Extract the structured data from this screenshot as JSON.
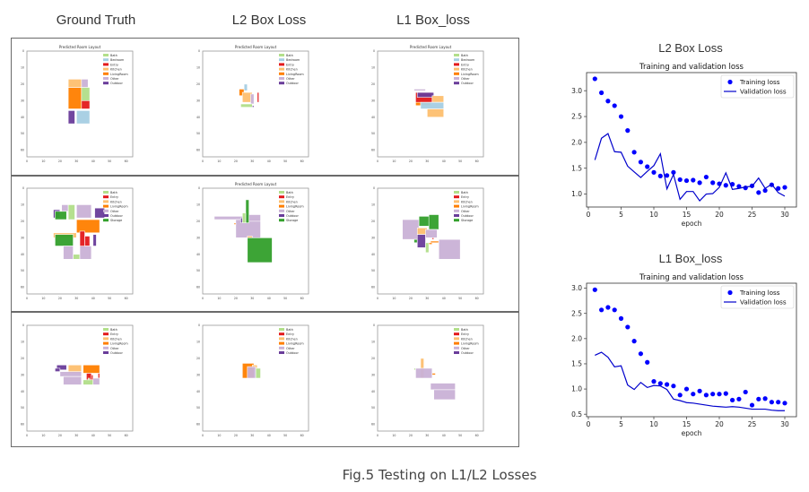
{
  "headers": {
    "col1": "Ground Truth",
    "col2": "L2 Box Loss",
    "col3": "L1 Box_loss"
  },
  "caption": "Fig.5 Testing on L1/L2 Losses",
  "room_colors": {
    "Bath": "#b2df8a",
    "Bedroom": "#a6cee3",
    "Entry": "#e31a1c",
    "Kitchen": "#fdbf6f",
    "LivingRoom": "#ff7f00",
    "Other": "#cab2d6",
    "Outdoor": "#6a3d9a",
    "Storage": "#33a02c"
  },
  "layouts": [
    {
      "id": "r1c1",
      "title": "Predicted Room Layout",
      "legend": [
        "Bath",
        "Bedroom",
        "Entry",
        "Kitchen",
        "LivingRoom",
        "Other",
        "Outdoor"
      ],
      "rooms": [
        [
          "Kitchen",
          25,
          17,
          33,
          22
        ],
        [
          "Other",
          33,
          17,
          37,
          22
        ],
        [
          "LivingRoom",
          25,
          22,
          33,
          35
        ],
        [
          "Bath",
          33,
          22,
          38,
          31
        ],
        [
          "Entry",
          33,
          30,
          38,
          35
        ],
        [
          "Outdoor",
          25,
          36,
          29,
          44
        ],
        [
          "Bedroom",
          30,
          36,
          38,
          44
        ]
      ]
    },
    {
      "id": "r1c2",
      "title": "Predicted Room Layout",
      "legend": [
        "Bath",
        "Bedroom",
        "Entry",
        "Kitchen",
        "LivingRoom",
        "Other",
        "Outdoor"
      ],
      "rooms": [
        [
          "Bedroom",
          25,
          20,
          27,
          24
        ],
        [
          "LivingRoom",
          22,
          23,
          25,
          27
        ],
        [
          "Kitchen",
          24,
          25,
          30,
          31
        ],
        [
          "Other",
          29,
          26,
          31,
          32
        ],
        [
          "Entry",
          33,
          25,
          34,
          31
        ],
        [
          "Bath",
          23,
          32,
          30,
          34
        ],
        [
          "Outdoor",
          30,
          33,
          31,
          34
        ]
      ]
    },
    {
      "id": "r1c3",
      "title": "Predicted Room Layout",
      "legend": [
        "Bath",
        "Bedroom",
        "Entry",
        "Kitchen",
        "LivingRoom",
        "Other",
        "Outdoor"
      ],
      "rooms": [
        [
          "Other",
          22,
          23,
          29,
          24
        ],
        [
          "LivingRoom",
          23,
          30,
          32,
          33
        ],
        [
          "Entry",
          23,
          25,
          33,
          31
        ],
        [
          "Outdoor",
          24,
          25,
          34,
          28
        ],
        [
          "Kitchen",
          33,
          27,
          40,
          31
        ],
        [
          "Bedroom",
          26,
          31,
          40,
          35
        ],
        [
          "Kitchen",
          30,
          35,
          40,
          40
        ]
      ]
    },
    {
      "id": "r2c1",
      "title": "",
      "legend": [
        "Bath",
        "Entry",
        "Kitchen",
        "LivingRoom",
        "Other",
        "Outdoor",
        "Storage"
      ],
      "rooms": [
        [
          "Other",
          21,
          10,
          25,
          14
        ],
        [
          "Bath",
          25,
          10,
          29,
          19
        ],
        [
          "Other",
          30,
          10,
          39,
          18
        ],
        [
          "Outdoor",
          16,
          13,
          20,
          18
        ],
        [
          "Storage",
          17,
          14,
          24,
          19
        ],
        [
          "Outdoor",
          41,
          12,
          47,
          18
        ],
        [
          "Kitchen",
          16,
          27,
          30,
          30
        ],
        [
          "LivingRoom",
          30,
          19,
          44,
          27
        ],
        [
          "Entry",
          32,
          26,
          35,
          36
        ],
        [
          "Entry",
          35,
          29,
          38,
          35
        ],
        [
          "Outdoor",
          40,
          28,
          42,
          35
        ],
        [
          "Storage",
          17,
          28,
          28,
          35
        ],
        [
          "Other",
          22,
          35,
          28,
          43
        ],
        [
          "Bath",
          28,
          40,
          32,
          43
        ],
        [
          "Other",
          32,
          35,
          39,
          43
        ]
      ]
    },
    {
      "id": "r2c2",
      "title": "Predicted Room Layout",
      "legend": [
        "Bath",
        "Entry",
        "Kitchen",
        "LivingRoom",
        "Other",
        "Outdoor",
        "Storage"
      ],
      "rooms": [
        [
          "Other",
          7,
          17,
          26,
          19
        ],
        [
          "Other",
          20,
          19,
          35,
          30
        ],
        [
          "Other",
          26,
          16,
          35,
          20
        ],
        [
          "Storage",
          26,
          7,
          28,
          21
        ],
        [
          "Bath",
          24,
          15,
          26,
          21
        ],
        [
          "Outdoor",
          23,
          18,
          24,
          21
        ],
        [
          "LivingRoom",
          19,
          21,
          20,
          22
        ],
        [
          "Kitchen",
          27,
          29,
          30,
          30
        ],
        [
          "Storage",
          27,
          30,
          42,
          45
        ]
      ]
    },
    {
      "id": "r2c3",
      "title": "",
      "legend": [
        "Bath",
        "Entry",
        "Kitchen",
        "LivingRoom",
        "Other",
        "Outdoor",
        "Storage"
      ],
      "rooms": [
        [
          "Other",
          15,
          19,
          25,
          31
        ],
        [
          "Storage",
          25,
          17,
          32,
          23
        ],
        [
          "Storage",
          31,
          16,
          37,
          25
        ],
        [
          "Kitchen",
          24,
          24,
          30,
          28
        ],
        [
          "Storage",
          22,
          31,
          24,
          33
        ],
        [
          "Outdoor",
          24,
          28,
          29,
          36
        ],
        [
          "Other",
          29,
          25,
          36,
          30
        ],
        [
          "Bath",
          29,
          33,
          31,
          39
        ],
        [
          "Entry",
          33,
          30,
          34,
          31
        ],
        [
          "LivingRoom",
          32,
          32,
          37,
          33
        ],
        [
          "LivingRoom",
          31,
          33,
          33,
          34
        ],
        [
          "Other",
          37,
          31,
          50,
          43
        ]
      ]
    },
    {
      "id": "r3c1",
      "title": "",
      "legend": [
        "Bath",
        "Entry",
        "Kitchen",
        "LivingRoom",
        "Other",
        "Outdoor"
      ],
      "rooms": [
        [
          "Outdoor",
          18,
          24,
          24,
          27
        ],
        [
          "Outdoor",
          17,
          26,
          20,
          28
        ],
        [
          "Kitchen",
          25,
          24,
          33,
          29
        ],
        [
          "Other",
          20,
          28,
          33,
          31
        ],
        [
          "Other",
          22,
          31,
          33,
          36
        ],
        [
          "LivingRoom",
          34,
          24,
          44,
          29
        ],
        [
          "Entry",
          36,
          29,
          39,
          33
        ],
        [
          "Entry",
          39,
          30,
          40,
          34
        ],
        [
          "Entry",
          43,
          29,
          44,
          32
        ],
        [
          "Bath",
          34,
          33,
          40,
          36
        ],
        [
          "Other",
          40,
          32,
          44,
          36
        ],
        [
          "Bath",
          37,
          32,
          38,
          33
        ]
      ]
    },
    {
      "id": "r3c2",
      "title": "",
      "legend": [
        "Bath",
        "Entry",
        "Kitchen",
        "LivingRoom",
        "Other",
        "Outdoor"
      ],
      "rooms": [
        [
          "LivingRoom",
          24,
          23,
          31,
          32
        ],
        [
          "Kitchen",
          30,
          24,
          33,
          26
        ],
        [
          "Bath",
          32,
          26,
          35,
          32
        ],
        [
          "Other",
          27,
          25,
          32,
          32
        ]
      ]
    },
    {
      "id": "r3c3",
      "title": "",
      "legend": [
        "Bath",
        "Entry",
        "Kitchen",
        "LivingRoom",
        "Other",
        "Outdoor"
      ],
      "rooms": [
        [
          "Kitchen",
          26,
          20,
          28,
          32
        ],
        [
          "Bath",
          22,
          26,
          23,
          27
        ],
        [
          "Other",
          23,
          26,
          33,
          32
        ],
        [
          "LivingRoom",
          33,
          29,
          35,
          30
        ],
        [
          "Other",
          32,
          35,
          47,
          39
        ],
        [
          "Other",
          34,
          39,
          47,
          45
        ]
      ]
    }
  ],
  "chart_data": [
    {
      "type": "scatter",
      "panel_title": "L2 Box Loss",
      "title": "Training and validation loss",
      "xlabel": "epoch",
      "ylabel": "",
      "xlim": [
        0,
        30
      ],
      "ylim": [
        0.75,
        3.35
      ],
      "xticks": [
        0,
        5,
        10,
        15,
        20,
        25,
        30
      ],
      "yticks": [
        1.0,
        1.5,
        2.0,
        2.5,
        3.0
      ],
      "ytick_labels": [
        "1.0",
        "1.5",
        "2.0",
        "2.5",
        "3.0"
      ],
      "legend": "top-right",
      "x": [
        1,
        2,
        3,
        4,
        5,
        6,
        7,
        8,
        9,
        10,
        11,
        12,
        13,
        14,
        15,
        16,
        17,
        18,
        19,
        20,
        21,
        22,
        23,
        24,
        25,
        26,
        27,
        28,
        29,
        30
      ],
      "series": [
        {
          "name": "Training loss",
          "style": "points",
          "color": "#0000ff",
          "values": [
            3.23,
            2.96,
            2.8,
            2.71,
            2.5,
            2.23,
            1.81,
            1.62,
            1.53,
            1.42,
            1.35,
            1.36,
            1.42,
            1.28,
            1.26,
            1.27,
            1.22,
            1.33,
            1.22,
            1.2,
            1.17,
            1.19,
            1.15,
            1.12,
            1.16,
            1.03,
            1.07,
            1.18,
            1.11,
            1.13
          ]
        },
        {
          "name": "Validation loss",
          "style": "line",
          "color": "#0000cc",
          "values": [
            1.66,
            2.08,
            2.17,
            1.82,
            1.81,
            1.54,
            1.43,
            1.32,
            1.44,
            1.55,
            1.78,
            1.1,
            1.38,
            0.9,
            1.05,
            1.05,
            0.87,
            1.0,
            1.01,
            1.13,
            1.41,
            1.09,
            1.11,
            1.14,
            1.15,
            1.31,
            1.11,
            1.19,
            1.03,
            0.96
          ]
        }
      ]
    },
    {
      "type": "scatter",
      "panel_title": "L1 Box_loss",
      "title": "Training and validation loss",
      "xlabel": "epoch",
      "ylabel": "",
      "xlim": [
        0,
        30
      ],
      "ylim": [
        0.45,
        3.1
      ],
      "xticks": [
        0,
        5,
        10,
        15,
        20,
        25,
        30
      ],
      "yticks": [
        0.5,
        1.0,
        1.5,
        2.0,
        2.5,
        3.0
      ],
      "ytick_labels": [
        "0.5",
        "1.0",
        "1.5",
        "2.0",
        "2.5",
        "3.0"
      ],
      "legend": "top-right",
      "x": [
        1,
        2,
        3,
        4,
        5,
        6,
        7,
        8,
        9,
        10,
        11,
        12,
        13,
        14,
        15,
        16,
        17,
        18,
        19,
        20,
        21,
        22,
        23,
        24,
        25,
        26,
        27,
        28,
        29,
        30
      ],
      "series": [
        {
          "name": "Training loss",
          "style": "points",
          "color": "#0000ff",
          "values": [
            2.97,
            2.57,
            2.62,
            2.57,
            2.4,
            2.23,
            1.95,
            1.7,
            1.53,
            1.15,
            1.11,
            1.09,
            1.06,
            0.88,
            1.0,
            0.9,
            0.96,
            0.88,
            0.9,
            0.9,
            0.91,
            0.78,
            0.8,
            0.94,
            0.68,
            0.8,
            0.81,
            0.74,
            0.74,
            0.72
          ]
        },
        {
          "name": "Validation loss",
          "style": "line",
          "color": "#0000cc",
          "values": [
            1.67,
            1.73,
            1.63,
            1.44,
            1.46,
            1.08,
            0.99,
            1.13,
            1.03,
            1.07,
            1.06,
            0.99,
            0.8,
            0.77,
            0.73,
            0.72,
            0.7,
            0.68,
            0.66,
            0.65,
            0.64,
            0.65,
            0.64,
            0.62,
            0.6,
            0.6,
            0.6,
            0.58,
            0.57,
            0.57
          ]
        }
      ]
    }
  ]
}
